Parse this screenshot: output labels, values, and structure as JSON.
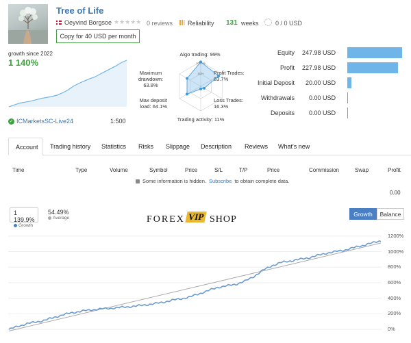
{
  "header": {
    "title": "Tree of Life",
    "author": "Oeyvind Borgsoe",
    "stars": "★★★★★",
    "reviews": "0 reviews",
    "reliability": "Reliability",
    "weeks_value": "131",
    "weeks_label": "weeks",
    "subscriptions": "0 / 0 USD",
    "copy_button": "Copy for 40 USD per month"
  },
  "growth": {
    "since_label": "growth since 2022",
    "value": "1 140%",
    "broker": "ICMarketsSC-Live24",
    "leverage": "1:500"
  },
  "radar": {
    "algo_trading": "Algo trading: 99%",
    "profit_trades": "Profit Trades:\n83.7%",
    "loss_trades": "Loss Trades:\n16.3%",
    "trading_activity": "Trading activity: 11%",
    "max_deposit_load": "Max deposit\nload: 64.1%",
    "max_drawdown": "Maximum\ndrawdown:\n63.8%",
    "ring_outer": "100+%",
    "ring_inner": "50%",
    "values": [
      0.99,
      0.837,
      0.163,
      0.11,
      0.641,
      0.638
    ]
  },
  "account": [
    {
      "label": "Equity",
      "value": "247.98 USD",
      "bar": 1.0
    },
    {
      "label": "Profit",
      "value": "227.98 USD",
      "bar": 0.919
    },
    {
      "label": "Initial Deposit",
      "value": "20.00 USD",
      "bar": 0.081
    },
    {
      "label": "Withdrawals",
      "value": "0.00 USD",
      "bar": 0
    },
    {
      "label": "Deposits",
      "value": "0.00 USD",
      "bar": 0
    }
  ],
  "tabs": [
    "Account",
    "Trading history",
    "Statistics",
    "Risks",
    "Slippage",
    "Description",
    "Reviews",
    "What's new"
  ],
  "table": {
    "headers": [
      "Time",
      "Type",
      "Volume",
      "Symbol",
      "Price",
      "S/L",
      "T/P",
      "Price",
      "Commission",
      "Swap",
      "Profit"
    ],
    "hidden_msg_prefix": "Some information is hidden.",
    "hidden_msg_link": "Subscribe",
    "hidden_msg_suffix": "to obtain complete data.",
    "profit_total": "0.00"
  },
  "chart_stats": {
    "growth_value": "1 139.9%",
    "growth_label": "Growth",
    "average_value": "54.49%",
    "average_label": "Average"
  },
  "logo": {
    "left": "FOREX",
    "middle": "VIP",
    "right": "SHOP"
  },
  "chart_buttons": {
    "growth": "Growth",
    "balance": "Balance"
  },
  "chart_data": {
    "type": "line",
    "title": "",
    "ylabel": "",
    "yticks": [
      "0%",
      "200%",
      "400%",
      "600%",
      "800%",
      "1000%",
      "1200%"
    ],
    "ylim": [
      -60,
      1260
    ],
    "series": [
      {
        "name": "Growth",
        "color": "#6b9bd1",
        "values": [
          0,
          40,
          75,
          95,
          120,
          155,
          190,
          215,
          235,
          250,
          262,
          270,
          280,
          290,
          300,
          315,
          330,
          350,
          375,
          395,
          420,
          460,
          500,
          540,
          560,
          580,
          620,
          680,
          760,
          820,
          860,
          880,
          900,
          920,
          950,
          980,
          1000,
          1020,
          1050,
          1080,
          1110,
          1140
        ]
      },
      {
        "name": "Average",
        "color": "#aaaaaa",
        "values": [
          -20,
          1110
        ]
      }
    ]
  },
  "mini_chart": {
    "values": [
      0,
      0.04,
      0.08,
      0.1,
      0.12,
      0.15,
      0.18,
      0.2,
      0.22,
      0.25,
      0.3,
      0.36,
      0.44,
      0.5,
      0.55,
      0.6,
      0.64,
      0.7,
      0.76,
      0.82,
      0.88,
      0.95,
      1.0
    ]
  },
  "colors": {
    "title": "#3a78b8",
    "accent_green": "#3aa33a",
    "bar": "#6fb5e8",
    "growth_line": "#6b9bd1"
  }
}
